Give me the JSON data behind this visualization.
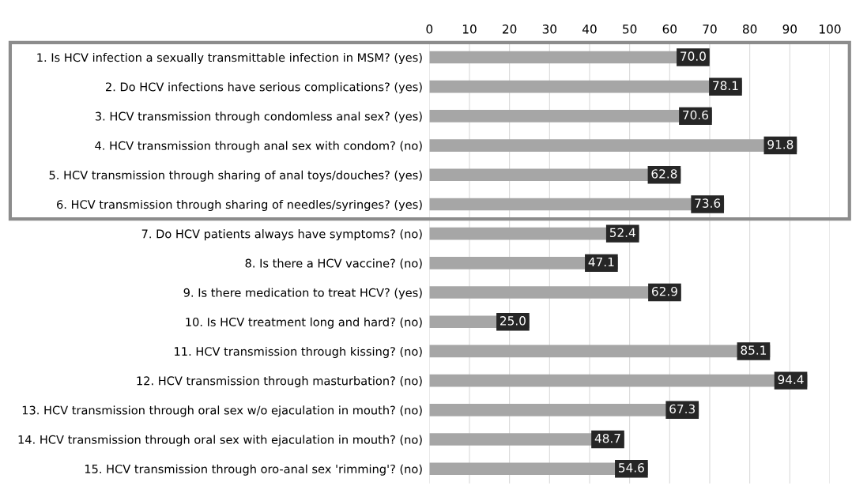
{
  "chart_data": {
    "type": "bar",
    "orientation": "horizontal",
    "categories": [
      "1. Is HCV infection a sexually transmittable infection in MSM? (yes)",
      "2. Do HCV infections have serious complications? (yes)",
      "3. HCV transmission through condomless anal sex? (yes)",
      "4. HCV transmission through anal sex with condom? (no)",
      "5. HCV transmission through sharing of anal toys/douches? (yes)",
      "6. HCV transmission through sharing of needles/syringes? (yes)",
      "7. Do HCV patients always have symptoms? (no)",
      "8. Is there a HCV vaccine? (no)",
      "9. Is there medication to treat HCV? (yes)",
      "10. Is HCV treatment long and hard? (no)",
      "11. HCV transmission through kissing? (no)",
      "12. HCV transmission through masturbation? (no)",
      "13. HCV transmission through oral sex w/o ejaculation in mouth? (no)",
      "14. HCV transmission through oral sex with ejaculation in mouth? (no)",
      "15. HCV transmission through oro-anal sex 'rimming'? (no)"
    ],
    "values": [
      70.0,
      78.1,
      70.6,
      91.8,
      62.8,
      73.6,
      52.4,
      47.1,
      62.9,
      25.0,
      85.1,
      94.4,
      67.3,
      48.7,
      54.6
    ],
    "value_labels": [
      "70.0",
      "78.1",
      "70.6",
      "91.8",
      "62.8",
      "73.6",
      "52.4",
      "47.1",
      "62.9",
      "25.0",
      "85.1",
      "94.4",
      "67.3",
      "48.7",
      "54.6"
    ],
    "color": "#a6a6a6",
    "xlim": [
      0,
      100
    ],
    "xticks": [
      0,
      10,
      20,
      30,
      40,
      50,
      60,
      70,
      80,
      90,
      100
    ],
    "grid": "x"
  }
}
